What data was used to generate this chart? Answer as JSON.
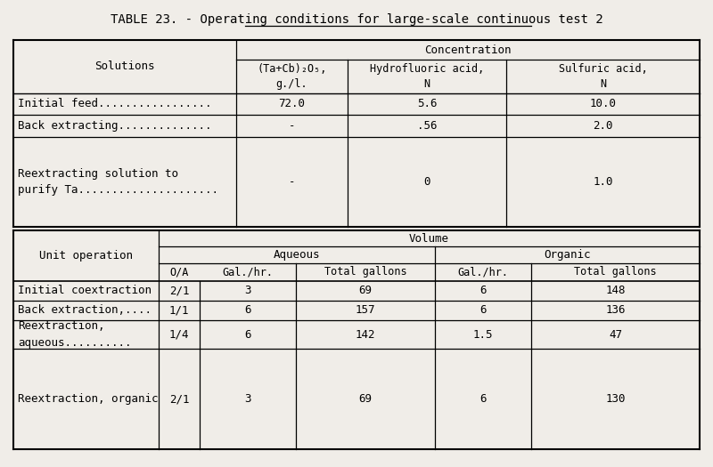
{
  "title": "TABLE 23. - Operating conditions for large-scale continuous test 2",
  "bg_color": "#f0ede8",
  "font_family": "monospace",
  "top_table": {
    "col_headers": [
      "(Ta+Cb)₂O₅,\ng./l.",
      "Hydrofluoric acid,\nN",
      "Sulfuric acid,\nN"
    ],
    "rows": [
      [
        "Initial feed.................",
        "72.0",
        "5.6",
        "10.0"
      ],
      [
        "Back extracting..............",
        "-",
        ".56",
        "2.0"
      ],
      [
        "Reextracting solution to",
        "purify Ta.....................",
        "-",
        "0",
        "1.0"
      ]
    ]
  },
  "bottom_table": {
    "col_headers": [
      "Gal./hr.",
      "Total gallons",
      "Gal./hr.",
      "Total gallons"
    ],
    "rows": [
      [
        "Initial coextraction",
        "2/1",
        "3",
        "69",
        "6",
        "148"
      ],
      [
        "Back extraction,....",
        "1/1",
        "6",
        "157",
        "6",
        "136"
      ],
      [
        "Reextraction,",
        "aqueous..........",
        "1/4",
        "6",
        "142",
        "1.5",
        "47"
      ],
      [
        "Reextraction, organic",
        "2/1",
        "3",
        "69",
        "6",
        "130"
      ]
    ]
  }
}
